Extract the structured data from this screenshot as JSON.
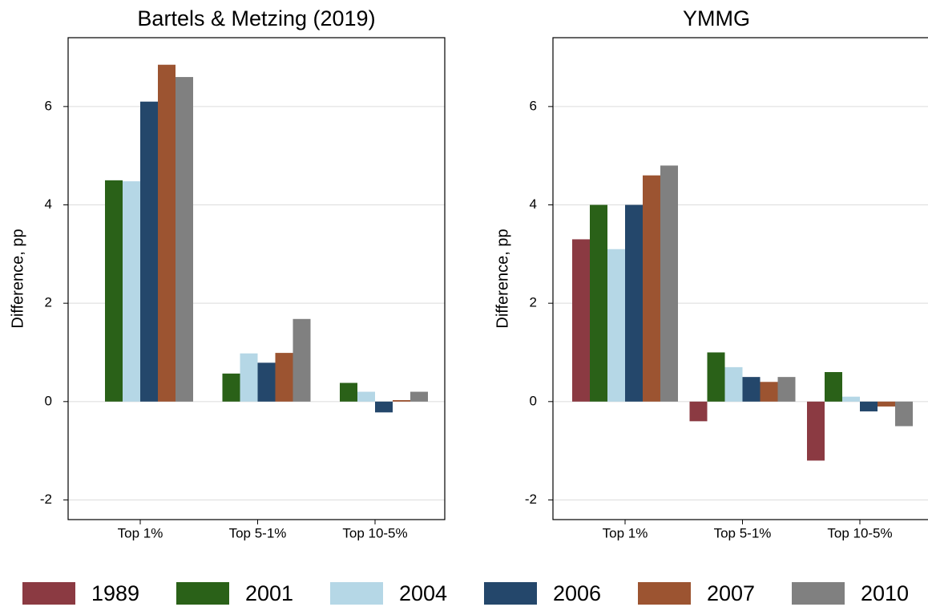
{
  "legend": [
    {
      "name": "1989",
      "color": "#8b3a42"
    },
    {
      "name": "2001",
      "color": "#2a6118"
    },
    {
      "name": "2004",
      "color": "#b5d7e6"
    },
    {
      "name": "2006",
      "color": "#24476b"
    },
    {
      "name": "2007",
      "color": "#9c5431"
    },
    {
      "name": "2010",
      "color": "#808080"
    }
  ],
  "chart_data": [
    {
      "type": "bar",
      "title": "Bartels & Metzing (2019)",
      "y_label": "Difference, pp",
      "categories": [
        "Top 1%",
        "Top 5-1%",
        "Top 10-5%"
      ],
      "series": [
        {
          "values": [
            null,
            null,
            null
          ]
        },
        {
          "values": [
            4.5,
            0.57,
            0.38
          ]
        },
        {
          "values": [
            4.48,
            0.98,
            0.2
          ]
        },
        {
          "values": [
            6.1,
            0.79,
            -0.22
          ]
        },
        {
          "values": [
            6.85,
            0.99,
            0.03
          ]
        },
        {
          "values": [
            6.6,
            1.68,
            0.2
          ]
        }
      ],
      "ylim": [
        -2.4,
        7.4
      ],
      "yticks": [
        -2,
        0,
        2,
        4,
        6
      ],
      "grid": true
    },
    {
      "type": "bar",
      "title": "YMMG",
      "y_label": "Difference, pp",
      "categories": [
        "Top 1%",
        "Top 5-1%",
        "Top 10-5%"
      ],
      "series": [
        {
          "values": [
            3.3,
            -0.4,
            -1.2
          ]
        },
        {
          "values": [
            4.0,
            1.0,
            0.6
          ]
        },
        {
          "values": [
            3.1,
            0.7,
            0.1
          ]
        },
        {
          "values": [
            4.0,
            0.5,
            -0.2
          ]
        },
        {
          "values": [
            4.6,
            0.4,
            -0.1
          ]
        },
        {
          "values": [
            4.8,
            0.5,
            -0.5
          ]
        }
      ],
      "ylim": [
        -2.4,
        7.4
      ],
      "yticks": [
        -2,
        0,
        2,
        4,
        6
      ],
      "grid": true
    }
  ]
}
